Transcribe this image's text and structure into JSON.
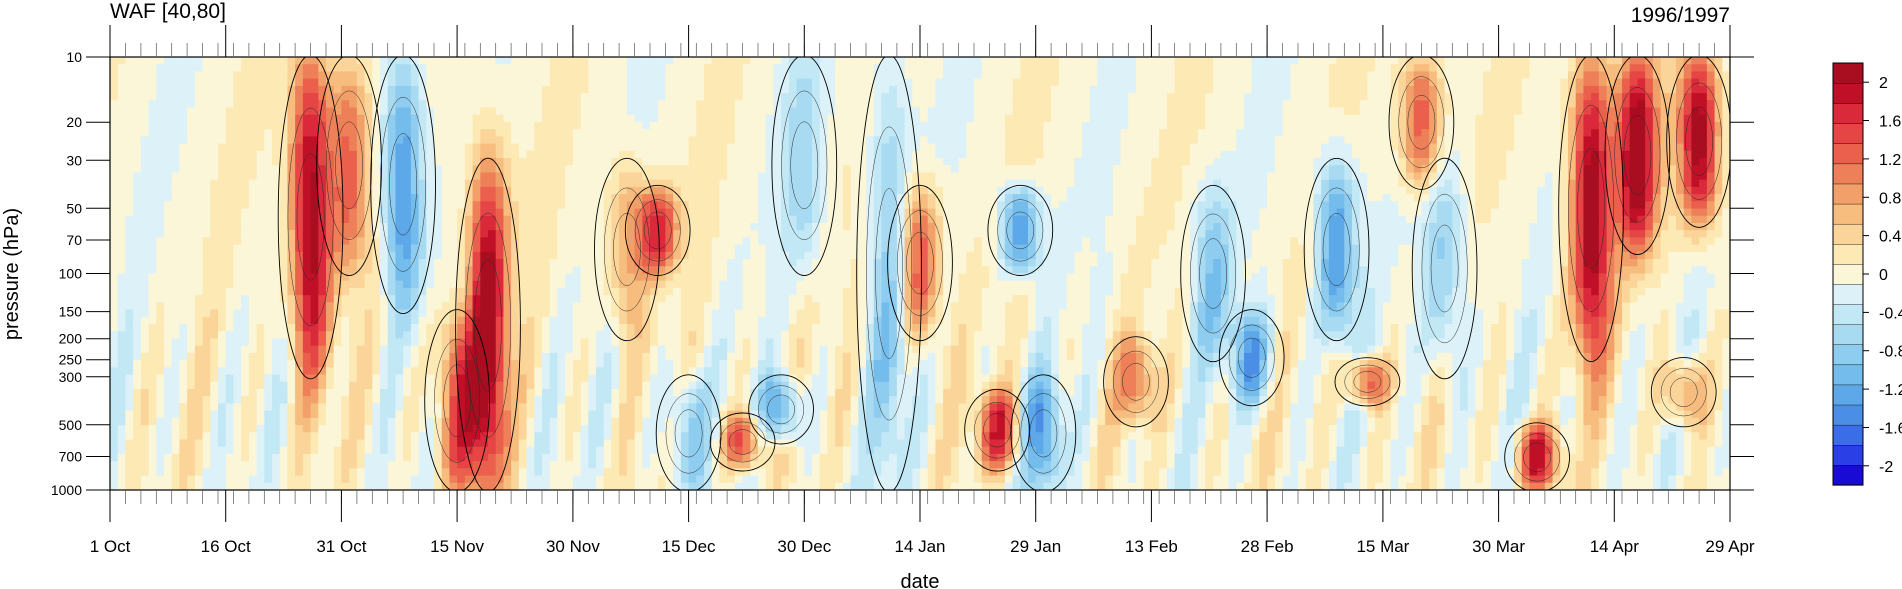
{
  "chart_data": {
    "type": "heatmap",
    "title": "WAF [40,80]",
    "subtitle": "1996/1997",
    "xlabel": "date",
    "ylabel": "pressure (hPa)",
    "x_ticks": [
      "1 Oct",
      "16 Oct",
      "31 Oct",
      "15 Nov",
      "30 Nov",
      "15 Dec",
      "30 Dec",
      "14 Jan",
      "29 Jan",
      "13 Feb",
      "28 Feb",
      "15 Mar",
      "30 Mar",
      "14 Apr",
      "29 Apr"
    ],
    "x_range_days": [
      0,
      210
    ],
    "y_ticks": [
      10,
      20,
      30,
      50,
      70,
      100,
      150,
      200,
      250,
      300,
      500,
      700,
      1000
    ],
    "y_scale": "log",
    "y_range": [
      1000,
      10
    ],
    "colorbar": {
      "range": [
        -2.2,
        2.2
      ],
      "step": 0.2,
      "tick_labels": [
        "2",
        "1.6",
        "1.2",
        "0.8",
        "0.4",
        "0",
        "-0.4",
        "-0.8",
        "-1.2",
        "-1.6",
        "-2"
      ],
      "tick_values": [
        2,
        1.6,
        1.2,
        0.8,
        0.4,
        0,
        -0.4,
        -0.8,
        -1.2,
        -1.6,
        -2
      ],
      "colors": [
        "#1a0ad6",
        "#2b3fe6",
        "#3a6ee8",
        "#4a8fe5",
        "#5da8e9",
        "#74bceb",
        "#8fcdf0",
        "#a8dbf2",
        "#c2e7f5",
        "#dcf1f8",
        "#fbf6d8",
        "#fde9b4",
        "#fad498",
        "#f6bd7f",
        "#f2a06a",
        "#ee8059",
        "#ea604c",
        "#e64545",
        "#d9293a",
        "#c01028",
        "#a80d20"
      ]
    },
    "features": [
      {
        "day": 26,
        "p_top": 10,
        "p_bot": 300,
        "value": 2.2
      },
      {
        "day": 31,
        "p_top": 10,
        "p_bot": 100,
        "value": 1.2
      },
      {
        "day": 38,
        "p_top": 10,
        "p_bot": 150,
        "value": -1.4
      },
      {
        "day": 45,
        "p_top": 150,
        "p_bot": 1000,
        "value": 1.4
      },
      {
        "day": 49,
        "p_top": 30,
        "p_bot": 1000,
        "value": 2.2
      },
      {
        "day": 67,
        "p_top": 30,
        "p_bot": 200,
        "value": 0.8
      },
      {
        "day": 71,
        "p_top": 40,
        "p_bot": 100,
        "value": 1.6
      },
      {
        "day": 75,
        "p_top": 300,
        "p_bot": 1000,
        "value": -0.8
      },
      {
        "day": 82,
        "p_top": 450,
        "p_bot": 800,
        "value": 1.4
      },
      {
        "day": 87,
        "p_top": 300,
        "p_bot": 600,
        "value": -1.2
      },
      {
        "day": 90,
        "p_top": 10,
        "p_bot": 100,
        "value": -0.6
      },
      {
        "day": 101,
        "p_top": 10,
        "p_bot": 1000,
        "value": -0.8
      },
      {
        "day": 105,
        "p_top": 40,
        "p_bot": 200,
        "value": 1.4
      },
      {
        "day": 115,
        "p_top": 350,
        "p_bot": 800,
        "value": 1.6
      },
      {
        "day": 118,
        "p_top": 40,
        "p_bot": 100,
        "value": -1.4
      },
      {
        "day": 121,
        "p_top": 300,
        "p_bot": 1000,
        "value": -1.2
      },
      {
        "day": 133,
        "p_top": 200,
        "p_bot": 500,
        "value": 1.0
      },
      {
        "day": 143,
        "p_top": 40,
        "p_bot": 250,
        "value": -0.8
      },
      {
        "day": 148,
        "p_top": 150,
        "p_bot": 400,
        "value": -1.2
      },
      {
        "day": 159,
        "p_top": 30,
        "p_bot": 200,
        "value": -1.4
      },
      {
        "day": 163,
        "p_top": 250,
        "p_bot": 400,
        "value": 1.4
      },
      {
        "day": 170,
        "p_top": 10,
        "p_bot": 40,
        "value": 1.4
      },
      {
        "day": 173,
        "p_top": 30,
        "p_bot": 300,
        "value": -0.8
      },
      {
        "day": 185,
        "p_top": 500,
        "p_bot": 1000,
        "value": 1.8
      },
      {
        "day": 192,
        "p_top": 10,
        "p_bot": 250,
        "value": 2.2
      },
      {
        "day": 198,
        "p_top": 10,
        "p_bot": 80,
        "value": 2.2
      },
      {
        "day": 206,
        "p_top": 10,
        "p_bot": 60,
        "value": 2.2
      },
      {
        "day": 204,
        "p_top": 250,
        "p_bot": 500,
        "value": 1.0
      }
    ],
    "grid": false,
    "legend": "right colorbar"
  }
}
